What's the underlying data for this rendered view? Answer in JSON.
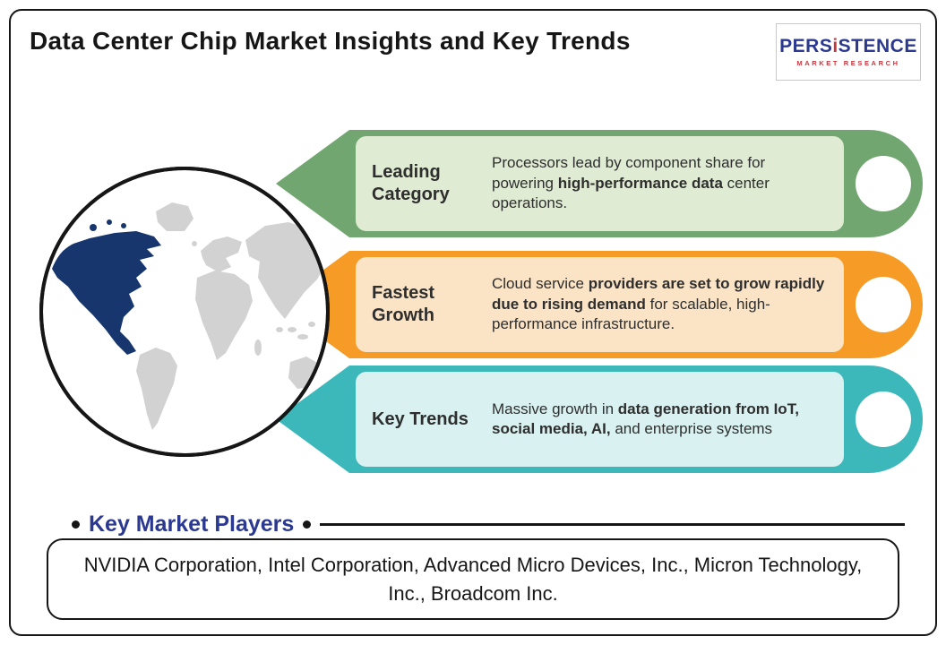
{
  "header": {
    "title": "Data Center Chip Market Insights and Key Trends"
  },
  "logo": {
    "part1": "PERS",
    "part2": "i",
    "part3": "STENCE",
    "subtitle": "MARKET RESEARCH",
    "blue": "#2b3990",
    "red": "#c8363d"
  },
  "colors": {
    "heading_blue": "#2b3990",
    "frame_black": "#161616"
  },
  "map": {
    "land_color": "#d2d2d2",
    "highlight_color": "#17366e",
    "highlight_region": "North America"
  },
  "banners": [
    {
      "label": "Leading Category",
      "color": "#72a670",
      "light_color": "#dfecd3",
      "segments": [
        {
          "text": "Processors lead by component share for powering ",
          "bold": false
        },
        {
          "text": "high-performance data",
          "bold": true
        },
        {
          "text": " center operations.",
          "bold": false
        }
      ]
    },
    {
      "label": "Fastest Growth",
      "color": "#f59b26",
      "light_color": "#fbe4c6",
      "segments": [
        {
          "text": "Cloud service ",
          "bold": false
        },
        {
          "text": "providers are set to grow rapidly due to rising demand",
          "bold": true
        },
        {
          "text": " for scalable, high-performance infrastructure.",
          "bold": false
        }
      ]
    },
    {
      "label": "Key Trends",
      "color": "#3cb8ba",
      "light_color": "#d9f1f0",
      "segments": [
        {
          "text": "Massive growth in ",
          "bold": false
        },
        {
          "text": "data generation from IoT, social media, AI,",
          "bold": true
        },
        {
          "text": " and enterprise systems",
          "bold": false
        }
      ]
    }
  ],
  "key_players": {
    "heading": "Key Market Players",
    "companies": "NVIDIA Corporation, Intel Corporation, Advanced Micro Devices, Inc., Micron Technology, Inc., Broadcom Inc."
  }
}
